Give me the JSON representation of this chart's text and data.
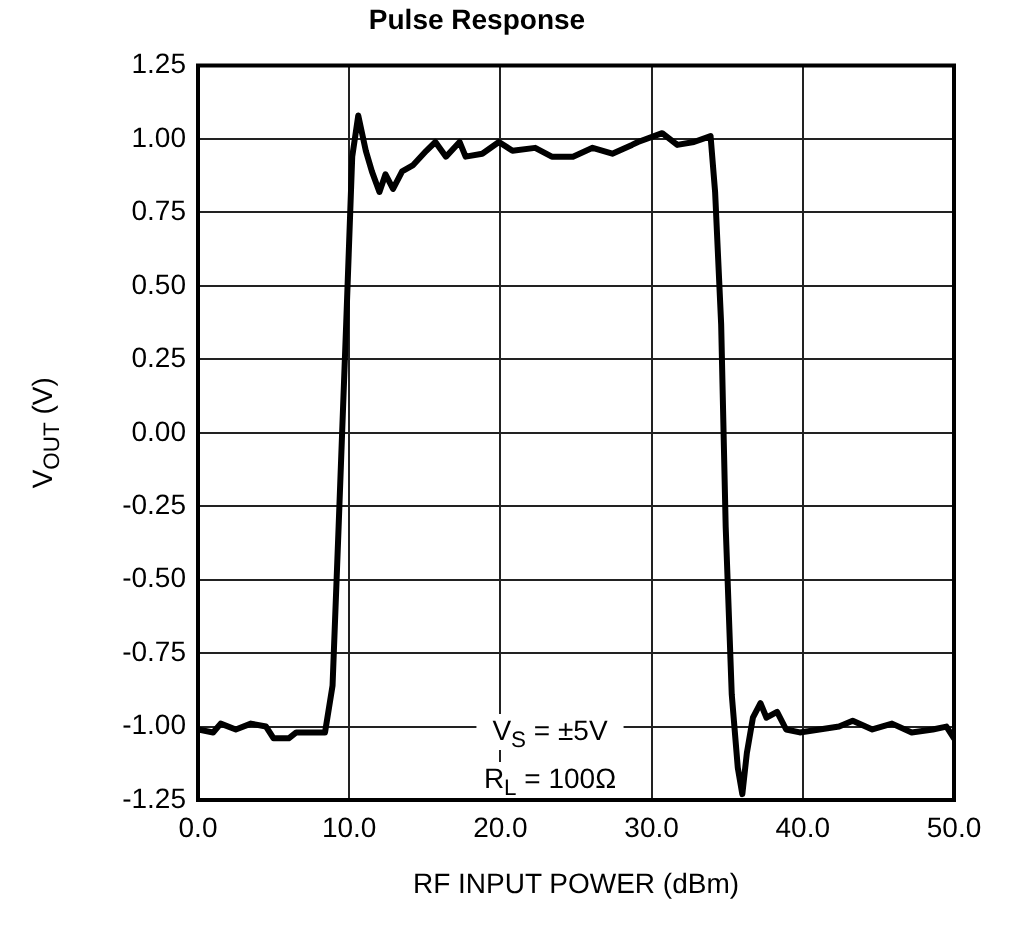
{
  "chart_data": {
    "type": "line",
    "title": "Pulse Response",
    "xlabel": "RF INPUT POWER (dBm)",
    "ylabel": "V$_{OUT}$ (V)",
    "annotations": [
      "V$_{S}$ = ±5V",
      "R$_{L}$ = 100Ω"
    ],
    "xlim": [
      0,
      50
    ],
    "ylim": [
      -1.25,
      1.25
    ],
    "xticks": [
      {
        "value": 0,
        "label": "0.0"
      },
      {
        "value": 10,
        "label": "10.0"
      },
      {
        "value": 20,
        "label": "20.0"
      },
      {
        "value": 30,
        "label": "30.0"
      },
      {
        "value": 40,
        "label": "40.0"
      },
      {
        "value": 50,
        "label": "50.0"
      }
    ],
    "yticks": [
      {
        "value": -1.25,
        "label": "-1.25"
      },
      {
        "value": -1,
        "label": "-1.00"
      },
      {
        "value": -0.75,
        "label": "-0.75"
      },
      {
        "value": -0.5,
        "label": "-0.50"
      },
      {
        "value": -0.25,
        "label": "-0.25"
      },
      {
        "value": 0,
        "label": "0.00"
      },
      {
        "value": 0.25,
        "label": "0.25"
      },
      {
        "value": 0.5,
        "label": "0.50"
      },
      {
        "value": 0.75,
        "label": "0.75"
      },
      {
        "value": 1,
        "label": "1.00"
      },
      {
        "value": 1.25,
        "label": "1.25"
      }
    ],
    "grid": true,
    "legend": false,
    "marker": "none",
    "line_style": "solid",
    "series": [
      {
        "color": "#000000",
        "x": [
          0,
          1,
          1.5,
          2.5,
          3.5,
          4.5,
          5,
          6,
          6.5,
          7.5,
          8.4,
          8.9,
          9.3,
          9.8,
          10.2,
          10.6,
          11.1,
          11.5,
          12,
          12.4,
          12.9,
          13.5,
          14.2,
          15.1,
          15.7,
          16.4,
          17.3,
          17.7,
          18.8,
          19.9,
          20.8,
          22.3,
          23.4,
          24.8,
          26.1,
          27.4,
          28.7,
          29.1,
          30.7,
          31.7,
          32.8,
          33.9,
          34.2,
          34.6,
          34.9,
          35.3,
          35.7,
          36,
          36.3,
          36.7,
          37.2,
          37.6,
          38.3,
          38.9,
          39.8,
          41.1,
          42.4,
          43.3,
          44.6,
          45.9,
          47.2,
          48.6,
          49.5,
          50
        ],
        "values": [
          -1.01,
          -1.02,
          -0.99,
          -1.01,
          -0.99,
          -1,
          -1.04,
          -1.04,
          -1.02,
          -1.02,
          -1.02,
          -0.86,
          -0.32,
          0.37,
          0.94,
          1.08,
          0.96,
          0.89,
          0.82,
          0.88,
          0.83,
          0.89,
          0.91,
          0.96,
          0.99,
          0.94,
          0.99,
          0.94,
          0.95,
          0.99,
          0.96,
          0.97,
          0.94,
          0.94,
          0.97,
          0.95,
          0.98,
          0.99,
          1.02,
          0.98,
          0.99,
          1.01,
          0.82,
          0.37,
          -0.32,
          -0.89,
          -1.14,
          -1.23,
          -1.09,
          -0.97,
          -0.92,
          -0.97,
          -0.95,
          -1.01,
          -1.02,
          -1.01,
          -1,
          -0.98,
          -1.01,
          -0.99,
          -1.02,
          -1.01,
          -1,
          -1.04
        ]
      }
    ]
  }
}
